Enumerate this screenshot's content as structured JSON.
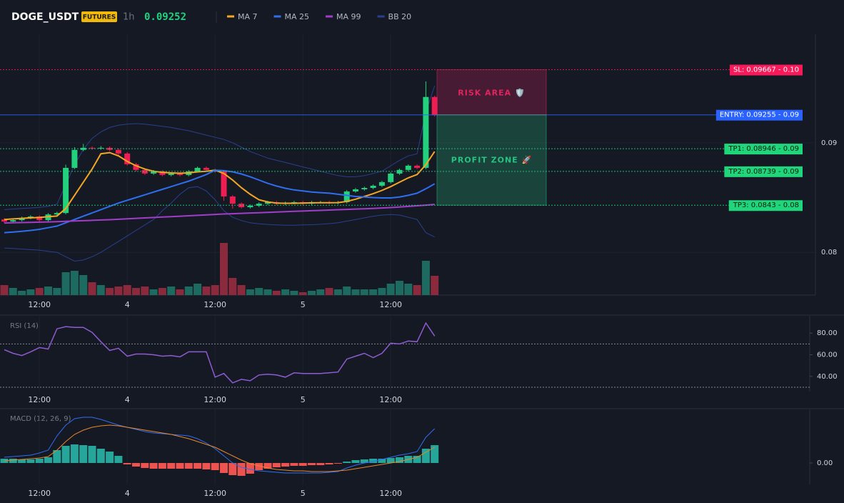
{
  "header": {
    "symbol": "DOGE_USDT",
    "badge": "FUTURES",
    "interval": "1h",
    "price": "0.09252"
  },
  "chart_data": [
    {
      "type": "candlestick",
      "categories": [
        null,
        null,
        null,
        null,
        "12:00",
        null,
        null,
        null,
        null,
        null,
        null,
        null,
        null,
        null,
        "4",
        null,
        null,
        null,
        null,
        null,
        null,
        null,
        null,
        null,
        "12:00",
        null,
        null,
        null,
        null,
        null,
        null,
        null,
        null,
        null,
        "5",
        null,
        null,
        null,
        null,
        null,
        null,
        null,
        null,
        null,
        "12:00",
        null,
        null,
        null,
        null,
        null
      ],
      "open": [
        0.083,
        0.08281,
        0.08294,
        0.08314,
        0.08327,
        0.08294,
        0.08346,
        0.08359,
        0.08771,
        0.08935,
        0.08954,
        0.08948,
        0.08954,
        0.08935,
        0.08902,
        0.08804,
        0.08752,
        0.08719,
        0.08739,
        0.08706,
        0.08719,
        0.08706,
        0.08739,
        0.08771,
        0.08752,
        0.08739,
        0.0851,
        0.08444,
        0.08412,
        0.08425,
        0.08444,
        0.08458,
        0.08444,
        0.08451,
        0.08458,
        0.08444,
        0.08458,
        0.08458,
        0.08451,
        0.08458,
        0.08556,
        0.08575,
        0.08588,
        0.08608,
        0.08641,
        0.08719,
        0.08752,
        0.08791,
        0.08771,
        0.09418
      ],
      "high": [
        0.08312,
        0.08306,
        0.08326,
        0.08339,
        0.08339,
        0.08358,
        0.08371,
        0.088,
        0.0896,
        0.0899,
        0.08966,
        0.0897,
        0.08966,
        0.08947,
        0.08914,
        0.08816,
        0.08764,
        0.08751,
        0.08751,
        0.08731,
        0.08731,
        0.08751,
        0.08783,
        0.08783,
        0.08764,
        0.08751,
        0.08522,
        0.08456,
        0.08437,
        0.08456,
        0.0847,
        0.0847,
        0.08463,
        0.0847,
        0.0847,
        0.0847,
        0.0847,
        0.0847,
        0.0847,
        0.08568,
        0.08587,
        0.086,
        0.0862,
        0.08653,
        0.08731,
        0.08764,
        0.08803,
        0.08803,
        0.0956,
        0.0943
      ],
      "low": [
        0.08269,
        0.08269,
        0.08282,
        0.08302,
        0.08282,
        0.08282,
        0.08334,
        0.08347,
        0.08759,
        0.08923,
        0.08936,
        0.08936,
        0.08923,
        0.0889,
        0.08792,
        0.0874,
        0.08707,
        0.08707,
        0.08694,
        0.08694,
        0.08694,
        0.08694,
        0.08727,
        0.0874,
        0.08727,
        0.0847,
        0.084,
        0.084,
        0.084,
        0.08413,
        0.08432,
        0.08432,
        0.08432,
        0.08439,
        0.08432,
        0.08432,
        0.08446,
        0.08439,
        0.08439,
        0.08446,
        0.08544,
        0.08563,
        0.08576,
        0.08596,
        0.08629,
        0.08707,
        0.0874,
        0.08759,
        0.08759,
        0.0924
      ],
      "close": [
        0.08281,
        0.08294,
        0.08314,
        0.08327,
        0.08294,
        0.08346,
        0.08359,
        0.08771,
        0.08935,
        0.08954,
        0.08948,
        0.08954,
        0.08935,
        0.08902,
        0.08804,
        0.08752,
        0.08719,
        0.08739,
        0.08706,
        0.08719,
        0.08706,
        0.08739,
        0.08771,
        0.08752,
        0.08739,
        0.0851,
        0.08444,
        0.08412,
        0.08425,
        0.08444,
        0.08458,
        0.08444,
        0.08451,
        0.08458,
        0.08444,
        0.08458,
        0.08458,
        0.08451,
        0.08458,
        0.08556,
        0.08575,
        0.08588,
        0.08608,
        0.08641,
        0.08719,
        0.08752,
        0.08791,
        0.08771,
        0.09418,
        0.09252
      ],
      "up_color": "#22d07e",
      "down_color": "#ee1d52",
      "volume": [
        14,
        10,
        6,
        8,
        10,
        12,
        10,
        32,
        34,
        28,
        18,
        14,
        10,
        12,
        14,
        10,
        12,
        8,
        10,
        12,
        8,
        12,
        16,
        12,
        14,
        73,
        24,
        14,
        8,
        10,
        8,
        6,
        8,
        6,
        4,
        6,
        8,
        10,
        8,
        12,
        8,
        8,
        8,
        10,
        16,
        20,
        16,
        14,
        48,
        27
      ],
      "volume_up_color": "#1d6b60",
      "volume_down_color": "#8a2a3c",
      "series": [
        {
          "name": "MA 7",
          "color": "#f5a623",
          "values": [
            0.083,
            0.08305,
            0.0831,
            0.08315,
            0.08318,
            0.08325,
            0.08331,
            0.084,
            0.0852,
            0.0864,
            0.0876,
            0.089,
            0.0891,
            0.0888,
            0.0883,
            0.0879,
            0.0876,
            0.0874,
            0.0873,
            0.08725,
            0.08722,
            0.08725,
            0.08735,
            0.0874,
            0.0875,
            0.0872,
            0.0866,
            0.0859,
            0.0853,
            0.0848,
            0.0846,
            0.0845,
            0.08448,
            0.08448,
            0.0845,
            0.08452,
            0.08453,
            0.08453,
            0.08454,
            0.08465,
            0.08485,
            0.0851,
            0.08535,
            0.08565,
            0.086,
            0.0864,
            0.0868,
            0.0871,
            0.088,
            0.0892
          ]
        },
        {
          "name": "MA 25",
          "color": "#2f6ef0",
          "values": [
            0.0818,
            0.08185,
            0.08192,
            0.082,
            0.0821,
            0.08225,
            0.0824,
            0.0827,
            0.083,
            0.0833,
            0.0836,
            0.0839,
            0.0842,
            0.0845,
            0.08475,
            0.085,
            0.08525,
            0.0855,
            0.08575,
            0.086,
            0.08625,
            0.0865,
            0.0868,
            0.0871,
            0.0875,
            0.08745,
            0.08735,
            0.08715,
            0.0869,
            0.0866,
            0.0863,
            0.08605,
            0.08585,
            0.0857,
            0.0856,
            0.0855,
            0.08545,
            0.0854,
            0.0853,
            0.0852,
            0.0851,
            0.08505,
            0.085,
            0.08497,
            0.08497,
            0.08505,
            0.0852,
            0.0854,
            0.0858,
            0.08625
          ]
        },
        {
          "name": "MA 99",
          "color": "#a23ccb",
          "values": [
            0.08268,
            0.0827,
            0.08272,
            0.08274,
            0.08276,
            0.08278,
            0.0828,
            0.08283,
            0.08286,
            0.08289,
            0.08292,
            0.08295,
            0.08298,
            0.08302,
            0.08306,
            0.0831,
            0.08314,
            0.08318,
            0.08322,
            0.08326,
            0.0833,
            0.08334,
            0.08338,
            0.08342,
            0.08346,
            0.0835,
            0.08353,
            0.08356,
            0.08359,
            0.08362,
            0.08365,
            0.08368,
            0.08371,
            0.08374,
            0.08377,
            0.0838,
            0.08383,
            0.08386,
            0.08389,
            0.08392,
            0.08395,
            0.08398,
            0.08401,
            0.08405,
            0.08409,
            0.08414,
            0.08419,
            0.08425,
            0.08431,
            0.08438
          ]
        },
        {
          "name": "BB 20",
          "color": "#2a3f8f",
          "upper": [
            0.0839,
            0.08395,
            0.084,
            0.08405,
            0.0841,
            0.0842,
            0.0844,
            0.0862,
            0.088,
            0.0894,
            0.0904,
            0.091,
            0.0914,
            0.0916,
            0.0917,
            0.09175,
            0.0917,
            0.0916,
            0.0915,
            0.0914,
            0.09125,
            0.0911,
            0.0909,
            0.0907,
            0.0905,
            0.0903,
            0.09,
            0.0896,
            0.0892,
            0.0889,
            0.0886,
            0.0884,
            0.0882,
            0.088,
            0.0878,
            0.0876,
            0.0874,
            0.0872,
            0.087,
            0.0869,
            0.0869,
            0.087,
            0.0872,
            0.0874,
            0.0879,
            0.0884,
            0.0888,
            0.089,
            0.0928,
            0.0952
          ],
          "lower": [
            0.0804,
            0.08035,
            0.0803,
            0.08025,
            0.0802,
            0.0801,
            0.08,
            0.0796,
            0.0792,
            0.0793,
            0.0796,
            0.08,
            0.0805,
            0.081,
            0.0815,
            0.082,
            0.0825,
            0.083,
            0.0838,
            0.0845,
            0.0853,
            0.0859,
            0.086,
            0.0856,
            0.0848,
            0.0838,
            0.0832,
            0.0829,
            0.0827,
            0.0826,
            0.08255,
            0.0825,
            0.08248,
            0.08248,
            0.0825,
            0.08252,
            0.08256,
            0.08262,
            0.0827,
            0.08285,
            0.083,
            0.08315,
            0.0833,
            0.0834,
            0.08345,
            0.0834,
            0.0832,
            0.083,
            0.0818,
            0.0814
          ]
        }
      ],
      "ylim": [
        0.0761,
        0.0999
      ],
      "yticks": [
        0.08,
        0.09
      ],
      "levels": [
        {
          "value": 0.09667,
          "label": "SL: 0.09667 - 0.10",
          "color": "#f7195a",
          "text_color": "#ffffff",
          "style": "dashed"
        },
        {
          "value": 0.09255,
          "label": "ENTRY: 0.09255 - 0.09",
          "color": "#2962ff",
          "text_color": "#ffffff",
          "style": "solid"
        },
        {
          "value": 0.08946,
          "label": "TP1: 0.08946 - 0.09",
          "color": "#1fd67b",
          "text_color": "#0b1a12",
          "style": "dashed"
        },
        {
          "value": 0.08739,
          "label": "TP2: 0.08739 - 0.09",
          "color": "#1fd67b",
          "text_color": "#0b1a12",
          "style": "dashed"
        },
        {
          "value": 0.0843,
          "label": "TP3: 0.0843 - 0.08",
          "color": "#1fd67b",
          "text_color": "#0b1a12",
          "style": "dashed"
        }
      ],
      "zones": [
        {
          "label": "RISK AREA 🛡️",
          "color": "#e0245e"
        },
        {
          "label": "PROFIT ZONE 🚀",
          "color": "#26c281"
        }
      ]
    },
    {
      "type": "line",
      "title": "RSI (14)",
      "color": "#8e5bd0",
      "values": [
        64.7,
        61.3,
        59.3,
        62.7,
        66.7,
        65.3,
        84,
        86,
        85.3,
        85.3,
        80.7,
        72,
        64,
        66,
        58.7,
        60.7,
        60.7,
        60,
        58.7,
        59.3,
        58,
        62.7,
        62.7,
        62.7,
        39.3,
        42.7,
        34,
        37.3,
        36,
        41.3,
        42,
        41.3,
        39.3,
        43.3,
        42.7,
        42.7,
        42.7,
        43.3,
        44,
        56,
        58.7,
        61.3,
        57.3,
        61.3,
        70.7,
        70,
        72.7,
        72,
        89.3,
        77.3
      ],
      "ylim": [
        26,
        96
      ],
      "yticks": [
        {
          "value": 40,
          "label": "40.00"
        },
        {
          "value": 60,
          "label": "60.00"
        },
        {
          "value": 80,
          "label": "80.00"
        }
      ],
      "levels": [
        70,
        30
      ]
    },
    {
      "type": "macd",
      "title": "MACD (12, 26, 9)",
      "series": [
        {
          "color": "#2f6ef0",
          "values": [
            8e-05,
            9e-05,
            0.0001,
            0.00011,
            0.00014,
            0.00018,
            0.00038,
            0.00053,
            0.00062,
            0.00064,
            0.00064,
            0.00061,
            0.00057,
            0.00053,
            0.0005,
            0.00047,
            0.00044,
            0.00042,
            0.00041,
            0.0004,
            0.00039,
            0.00038,
            0.00034,
            0.00028,
            0.0002,
            0.0001,
            0,
            -6e-05,
            -9e-05,
            -0.00011,
            -0.00012,
            -0.00013,
            -0.00014,
            -0.00014,
            -0.00014,
            -0.00014,
            -0.00014,
            -0.00013,
            -0.00012,
            -7e-05,
            -3e-05,
            0,
            2e-05,
            5e-05,
            8e-05,
            0.00011,
            0.00013,
            0.00016,
            0.00036,
            0.00048
          ]
        },
        {
          "color": "#e8872a",
          "values": [
            3e-05,
            4e-05,
            5e-05,
            6e-05,
            7e-05,
            9e-05,
            0.00018,
            0.0003,
            0.0004,
            0.00046,
            0.0005,
            0.00052,
            0.00053,
            0.00052,
            0.0005,
            0.00048,
            0.00046,
            0.00044,
            0.00042,
            0.0004,
            0.00037,
            0.00034,
            0.0003,
            0.00026,
            0.00022,
            0.00016,
            0.0001,
            4e-05,
            -1e-05,
            -4e-05,
            -7e-05,
            -9e-05,
            -0.0001,
            -0.00011,
            -0.00011,
            -0.00012,
            -0.00012,
            -0.00012,
            -0.00011,
            -0.0001,
            -8e-05,
            -6e-05,
            -4e-05,
            -2e-05,
            0,
            2e-05,
            5e-05,
            8e-05,
            0.00015,
            0.00022
          ]
        }
      ],
      "histogram": [
        6e-05,
        6e-05,
        5e-05,
        5e-05,
        6e-05,
        8e-05,
        0.00018,
        0.00024,
        0.00026,
        0.00025,
        0.00024,
        0.0002,
        0.00016,
        0.0001,
        -2e-05,
        -5e-05,
        -7e-05,
        -8e-05,
        -8e-05,
        -8e-05,
        -8e-05,
        -8e-05,
        -8e-05,
        -9e-05,
        -0.0001,
        -0.00014,
        -0.00017,
        -0.00018,
        -0.00015,
        -0.0001,
        -8e-05,
        -6e-05,
        -5e-05,
        -4e-05,
        -4e-05,
        -3e-05,
        -3e-05,
        -2e-05,
        -1e-05,
        2e-05,
        4e-05,
        5e-05,
        6e-05,
        6e-05,
        7e-05,
        8e-05,
        0.0001,
        0.0001,
        0.0002,
        0.00025
      ],
      "up_color": "#26a69a",
      "down_color": "#ef5350",
      "ylim": [
        -0.0003,
        0.00075
      ],
      "yticks": [
        {
          "value": 0,
          "label": "0.00"
        }
      ]
    }
  ]
}
